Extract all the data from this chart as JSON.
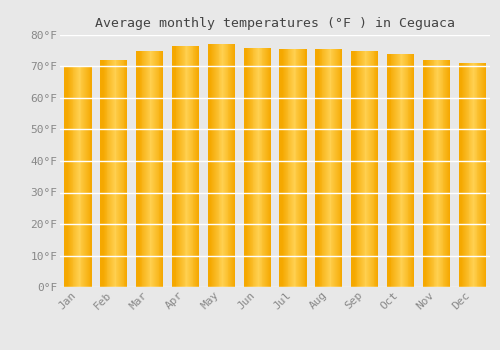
{
  "title": "Average monthly temperatures (°F ) in Ceguaca",
  "months": [
    "Jan",
    "Feb",
    "Mar",
    "Apr",
    "May",
    "Jun",
    "Jul",
    "Aug",
    "Sep",
    "Oct",
    "Nov",
    "Dec"
  ],
  "values": [
    70,
    72,
    75,
    76.5,
    77,
    76,
    75.5,
    75.5,
    75,
    74,
    72,
    71
  ],
  "bar_color_left": "#F5A800",
  "bar_color_center": "#FFD050",
  "bar_color_right": "#F5A800",
  "ylim": [
    0,
    80
  ],
  "yticks": [
    0,
    10,
    20,
    30,
    40,
    50,
    60,
    70,
    80
  ],
  "background_color": "#e8e8e8",
  "plot_bg_color": "#e8e8e8",
  "grid_color": "#ffffff",
  "title_fontsize": 9.5,
  "tick_fontsize": 8,
  "title_color": "#444444",
  "tick_color": "#888888"
}
